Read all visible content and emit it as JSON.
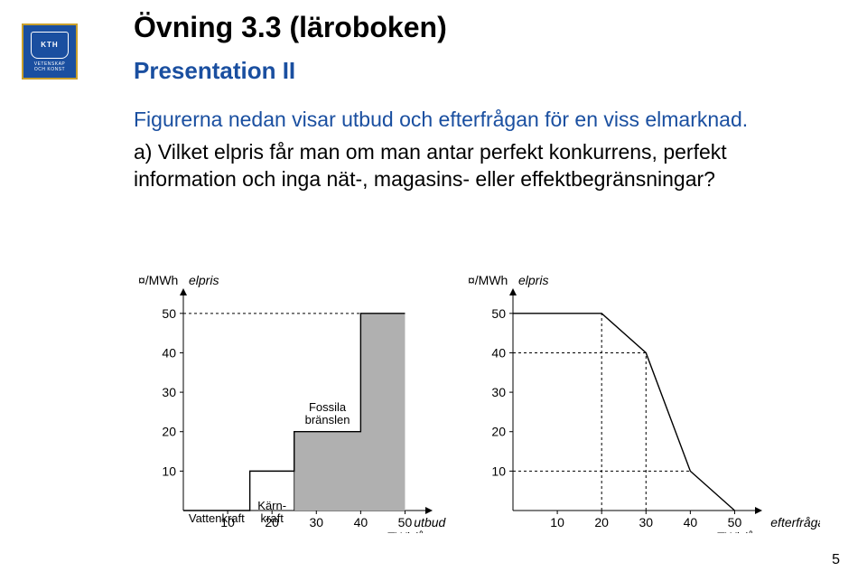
{
  "logo": {
    "kth": "KTH",
    "sub1": "VETENSKAP",
    "sub2": "OCH KONST",
    "bg": "#1a4fa0",
    "border": "#c9a02c",
    "fg": "#ffffff"
  },
  "title": "Övning 3.3 (läroboken)",
  "subtitle": "Presentation II",
  "para1": "Figurerna nedan visar utbud och efterfrågan för en viss elmarknad.",
  "para2": "a) Vilket elpris får man om man antar perfekt konkurrens, perfekt information och inga nät-, magasins- eller effektbegränsningar?",
  "page_number": "5",
  "chart_common": {
    "y_axis_unit": "¤/MWh",
    "y_axis_label": "elpris",
    "x_axis_unit": "TWh/år",
    "x_ticks": [
      10,
      20,
      30,
      40,
      50
    ],
    "y_ticks": [
      10,
      20,
      30,
      40,
      50
    ],
    "xlim": [
      0,
      55
    ],
    "ylim": [
      0,
      55
    ],
    "axis_color": "#000000",
    "dash_color": "#000000",
    "dash_pattern": "3,3",
    "tick_fontsize": 14,
    "label_fontsize": 14,
    "background_color": "#ffffff"
  },
  "supply_chart": {
    "type": "step-line",
    "x_label": "utbud",
    "step_points": [
      {
        "x": 0,
        "y": 0
      },
      {
        "x": 15,
        "y": 0
      },
      {
        "x": 15,
        "y": 10
      },
      {
        "x": 25,
        "y": 10
      },
      {
        "x": 25,
        "y": 20
      },
      {
        "x": 40,
        "y": 20
      },
      {
        "x": 40,
        "y": 50
      },
      {
        "x": 50,
        "y": 50
      }
    ],
    "dash_lines": [
      {
        "x": 0,
        "y": 50,
        "tox": 40
      }
    ],
    "fill_region": {
      "color": "#b0b0b0",
      "points": [
        {
          "x": 25,
          "y": 0
        },
        {
          "x": 25,
          "y": 20
        },
        {
          "x": 40,
          "y": 20
        },
        {
          "x": 40,
          "y": 50
        },
        {
          "x": 50,
          "y": 50
        },
        {
          "x": 50,
          "y": 0
        }
      ]
    },
    "dividers_x": [
      15,
      25
    ],
    "segment_labels": [
      {
        "text": "Vattenkraft",
        "x_center": 7.5,
        "y": -3
      },
      {
        "text": "Kärn-\nkraft",
        "x_center": 20,
        "y": -3
      },
      {
        "text": "Fossila\nbränslen",
        "x_center": 32.5,
        "y": 22
      }
    ]
  },
  "demand_chart": {
    "type": "line",
    "x_label": "efterfrågan",
    "line_points": [
      {
        "x": 0,
        "y": 50
      },
      {
        "x": 20,
        "y": 50
      },
      {
        "x": 30,
        "y": 40
      },
      {
        "x": 40,
        "y": 10
      },
      {
        "x": 50,
        "y": 0
      }
    ],
    "dash_lines_h": [
      {
        "y": 40,
        "tox": 30
      },
      {
        "y": 10,
        "tox": 40
      }
    ],
    "dash_lines_v": [
      {
        "x": 20,
        "toy": 50
      },
      {
        "x": 30,
        "toy": 40
      }
    ]
  }
}
